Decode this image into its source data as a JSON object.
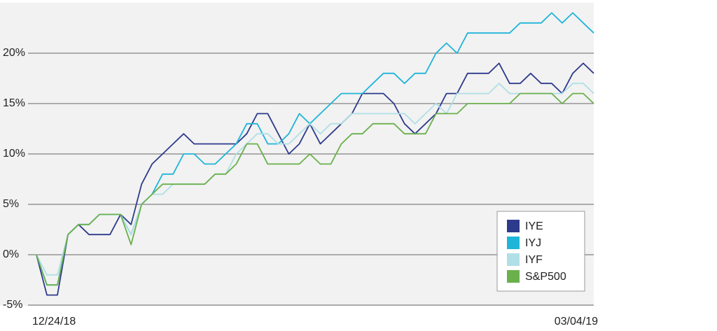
{
  "chart_data": {
    "type": "line",
    "categories": [
      "12/24/18",
      null,
      null,
      null,
      null,
      null,
      null,
      null,
      null,
      null,
      null,
      null,
      null,
      null,
      null,
      null,
      null,
      null,
      null,
      null,
      null,
      null,
      null,
      null,
      null,
      null,
      null,
      null,
      null,
      null,
      null,
      null,
      null,
      null,
      null,
      null,
      null,
      null,
      null,
      null,
      null,
      null,
      null,
      null,
      null,
      null,
      null,
      null,
      null,
      null,
      null,
      null,
      null,
      "03/04/19"
    ],
    "series": [
      {
        "name": "IYE",
        "color": "#2e3a8c",
        "values": [
          0,
          -4,
          -4,
          2,
          3,
          2,
          2,
          2,
          4,
          3,
          7,
          9,
          10,
          11,
          12,
          11,
          11,
          11,
          11,
          11,
          12,
          14,
          14,
          12,
          10,
          11,
          13,
          11,
          12,
          13,
          14,
          16,
          16,
          16,
          15,
          13,
          12,
          13,
          14,
          16,
          16,
          18,
          18,
          18,
          19,
          17,
          17,
          18,
          17,
          17,
          16,
          18,
          19,
          18
        ]
      },
      {
        "name": "IYJ",
        "color": "#1fb5d9",
        "values": [
          0,
          -3,
          -3,
          2,
          3,
          3,
          4,
          4,
          4,
          2,
          5,
          6,
          8,
          8,
          10,
          10,
          9,
          9,
          10,
          11,
          13,
          13,
          11,
          11,
          12,
          14,
          13,
          14,
          15,
          16,
          16,
          16,
          17,
          18,
          18,
          17,
          18,
          18,
          20,
          21,
          20,
          22,
          22,
          22,
          22,
          22,
          23,
          23,
          23,
          24,
          23,
          24,
          23,
          22
        ]
      },
      {
        "name": "IYF",
        "color": "#b0dfe6",
        "values": [
          0,
          -2,
          -2,
          2,
          3,
          3,
          4,
          4,
          4,
          2,
          5,
          6,
          6,
          7,
          7,
          7,
          7,
          8,
          8,
          10,
          11,
          12,
          12,
          11,
          11,
          12,
          13,
          12,
          13,
          13,
          14,
          14,
          14,
          14,
          14,
          14,
          13,
          14,
          15,
          14,
          16,
          16,
          16,
          16,
          17,
          16,
          16,
          16,
          16,
          16,
          16,
          17,
          17,
          16
        ]
      },
      {
        "name": "S&P500",
        "color": "#6ab04c",
        "values": [
          0,
          -3,
          -3,
          2,
          3,
          3,
          4,
          4,
          4,
          1,
          5,
          6,
          7,
          7,
          7,
          7,
          7,
          8,
          8,
          9,
          11,
          11,
          9,
          9,
          9,
          9,
          10,
          9,
          9,
          11,
          12,
          12,
          13,
          13,
          13,
          12,
          12,
          12,
          14,
          14,
          14,
          15,
          15,
          15,
          15,
          15,
          16,
          16,
          16,
          16,
          15,
          16,
          16,
          15
        ]
      }
    ],
    "ylim": [
      -5,
      25
    ],
    "yticks": [
      {
        "value": -5,
        "label": "-5%"
      },
      {
        "value": 0,
        "label": "0%"
      },
      {
        "value": 5,
        "label": "5%"
      },
      {
        "value": 10,
        "label": "10%"
      },
      {
        "value": 15,
        "label": "15%"
      },
      {
        "value": 20,
        "label": "20%"
      }
    ],
    "grid": true,
    "legend": "lower right"
  }
}
